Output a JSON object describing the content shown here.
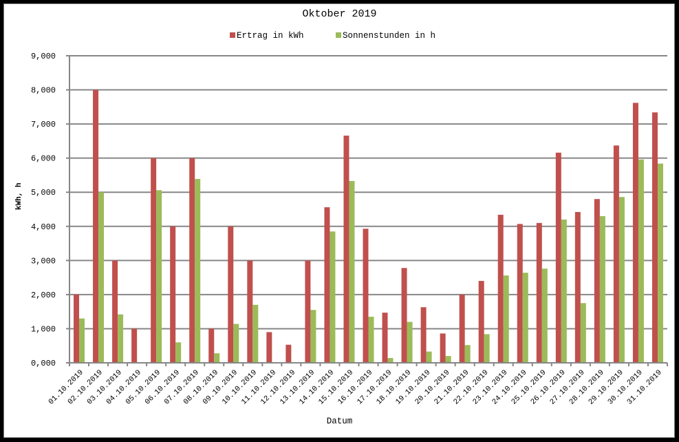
{
  "chart_data": {
    "type": "bar",
    "title": "Oktober 2019",
    "xlabel": "Datum",
    "ylabel": "kWh, h",
    "ylim": [
      0,
      9
    ],
    "yticks": [
      "0,000",
      "1,000",
      "2,000",
      "3,000",
      "4,000",
      "5,000",
      "6,000",
      "7,000",
      "8,000",
      "9,000"
    ],
    "grid": true,
    "legend_position": "top",
    "categories": [
      "01.10.2019",
      "02.10.2019",
      "03.10.2019",
      "04.10.2019",
      "05.10.2019",
      "06.10.2019",
      "07.10.2019",
      "08.10.2019",
      "09.10.2019",
      "10.10.2019",
      "11.10.2019",
      "12.10.2019",
      "13.10.2019",
      "14.10.2019",
      "15.10.2019",
      "16.10.2019",
      "17.10.2019",
      "18.10.2019",
      "19.10.2019",
      "20.10.2019",
      "21.10.2019",
      "22.10.2019",
      "23.10.2019",
      "24.10.2019",
      "25.10.2019",
      "26.10.2019",
      "27.10.2019",
      "28.10.2019",
      "29.10.2019",
      "30.10.2019",
      "31.10.2019"
    ],
    "series": [
      {
        "name": "Ertrag in kWh",
        "color": "#c0504d",
        "values": [
          2.0,
          8.0,
          3.0,
          1.0,
          6.0,
          4.0,
          6.0,
          1.0,
          4.0,
          3.0,
          0.9,
          0.53,
          3.0,
          4.56,
          6.66,
          3.93,
          1.47,
          2.78,
          1.63,
          0.86,
          2.0,
          2.4,
          4.34,
          4.07,
          4.1,
          6.16,
          4.42,
          4.8,
          6.37,
          7.62,
          7.34
        ]
      },
      {
        "name": "Sonnenstunden in h",
        "color": "#9bbb59",
        "values": [
          1.3,
          5.0,
          1.42,
          0.0,
          5.06,
          0.6,
          5.39,
          0.28,
          1.14,
          1.7,
          0.0,
          0.0,
          1.55,
          3.85,
          5.33,
          1.35,
          0.14,
          1.2,
          0.33,
          0.2,
          0.52,
          0.84,
          2.56,
          2.64,
          2.76,
          4.2,
          1.75,
          4.3,
          4.86,
          5.96,
          5.84
        ]
      }
    ]
  },
  "colors": {
    "grid": "#868686",
    "axis": "#868686",
    "background": "#ffffff",
    "frame": "#000000"
  }
}
